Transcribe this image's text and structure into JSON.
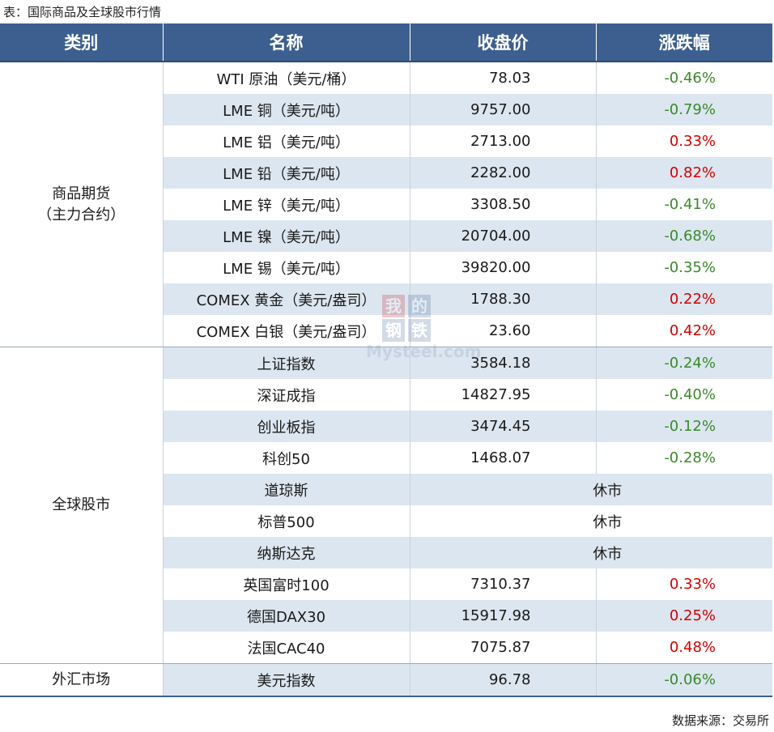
{
  "caption": "表：国际商品及全球股市行情",
  "source": "数据来源：交易所",
  "headers": [
    "类别",
    "名称",
    "收盘价",
    "涨跌幅"
  ],
  "watermark": {
    "chars": [
      "我",
      "的",
      "钢",
      "铁"
    ],
    "text": "Mysteel.com"
  },
  "groups": [
    {
      "category_lines": [
        "商品期货",
        "（主力合约）"
      ],
      "rows": [
        {
          "name": "WTI 原油（美元/桶）",
          "price": "78.03",
          "change": "-0.46%",
          "dir": "down"
        },
        {
          "name": "LME 铜（美元/吨）",
          "price": "9757.00",
          "change": "-0.79%",
          "dir": "down"
        },
        {
          "name": "LME 铝（美元/吨）",
          "price": "2713.00",
          "change": "0.33%",
          "dir": "up"
        },
        {
          "name": "LME 铅（美元/吨）",
          "price": "2282.00",
          "change": "0.82%",
          "dir": "up"
        },
        {
          "name": "LME 锌（美元/吨）",
          "price": "3308.50",
          "change": "-0.41%",
          "dir": "down"
        },
        {
          "name": "LME 镍（美元/吨）",
          "price": "20704.00",
          "change": "-0.68%",
          "dir": "down"
        },
        {
          "name": "LME 锡（美元/吨）",
          "price": "39820.00",
          "change": "-0.35%",
          "dir": "down"
        },
        {
          "name": "COMEX 黄金（美元/盎司）",
          "price": "1788.30",
          "change": "0.22%",
          "dir": "up"
        },
        {
          "name": "COMEX 白银（美元/盎司）",
          "price": "23.60",
          "change": "0.42%",
          "dir": "up"
        }
      ]
    },
    {
      "category_lines": [
        "全球股市"
      ],
      "rows": [
        {
          "name": "上证指数",
          "price": "3584.18",
          "change": "-0.24%",
          "dir": "down"
        },
        {
          "name": "深证成指",
          "price": "14827.95",
          "change": "-0.40%",
          "dir": "down"
        },
        {
          "name": "创业板指",
          "price": "3474.45",
          "change": "-0.12%",
          "dir": "down"
        },
        {
          "name": "科创50",
          "price": "1468.07",
          "change": "-0.28%",
          "dir": "down"
        },
        {
          "name": "道琼斯",
          "closed": "休市"
        },
        {
          "name": "标普500",
          "closed": "休市"
        },
        {
          "name": "纳斯达克",
          "closed": "休市"
        },
        {
          "name": "英国富时100",
          "price": "7310.37",
          "change": "0.33%",
          "dir": "up"
        },
        {
          "name": "德国DAX30",
          "price": "15917.98",
          "change": "0.25%",
          "dir": "up"
        },
        {
          "name": "法国CAC40",
          "price": "7075.87",
          "change": "0.48%",
          "dir": "up"
        }
      ]
    },
    {
      "category_lines": [
        "外汇市场"
      ],
      "rows": [
        {
          "name": "美元指数",
          "price": "96.78",
          "change": "-0.06%",
          "dir": "down"
        }
      ]
    }
  ]
}
